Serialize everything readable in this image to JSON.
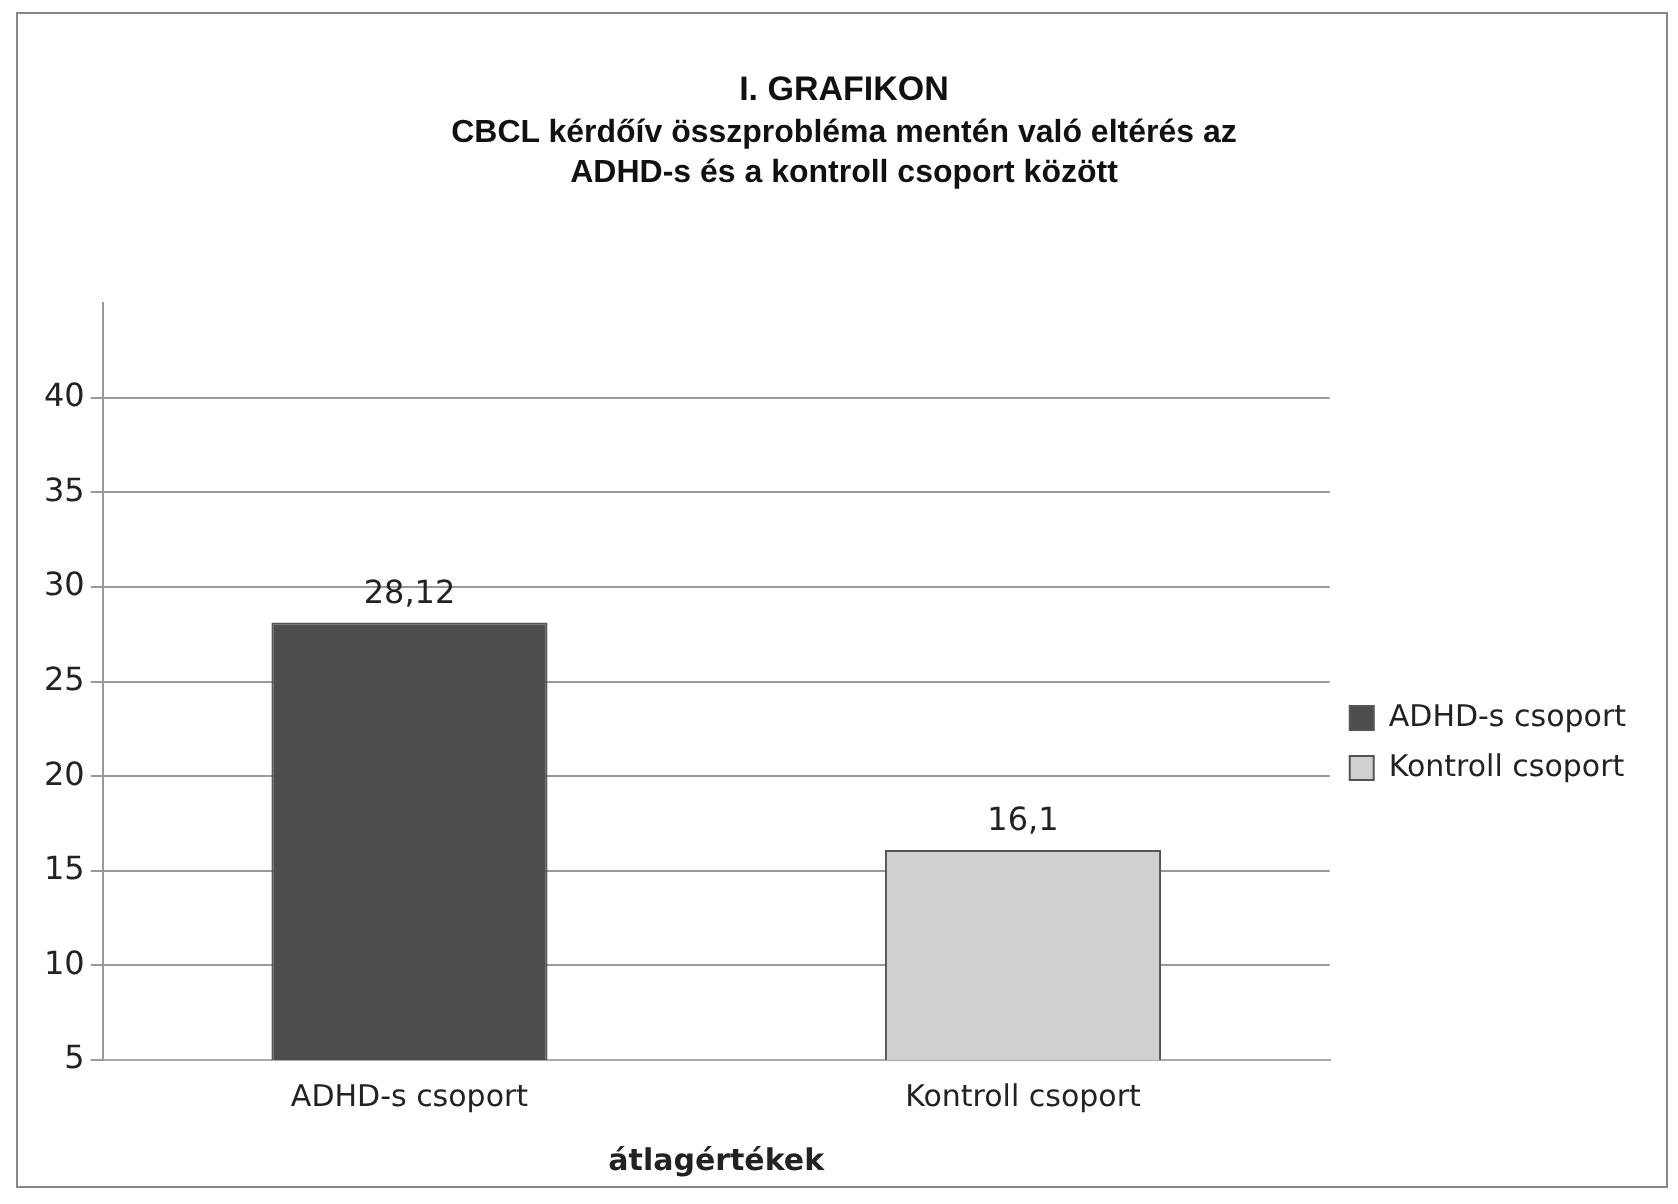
{
  "chart_data": {
    "type": "bar",
    "title": "I. GRAFIKON",
    "subtitle": "CBCL kérdőív összprobléma mentén való eltérés az ADHD-s és a kontroll csoport között",
    "xlabel": "átlagértékek",
    "categories": [
      "ADHD-s csoport",
      "Kontroll csoport"
    ],
    "series": [
      {
        "name": "ADHD-s csoport",
        "color": "#4d4d4d",
        "values": [
          28.12,
          null
        ],
        "value_labels": [
          "28,12",
          null
        ]
      },
      {
        "name": "Kontroll csoport",
        "color": "#d0d0d0",
        "values": [
          null,
          16.1
        ],
        "value_labels": [
          null,
          "16,1"
        ]
      }
    ],
    "ylim": [
      5,
      45
    ],
    "yticks": [
      5,
      10,
      15,
      20,
      25,
      30,
      35,
      40
    ],
    "grid": "y",
    "legend": "right"
  }
}
